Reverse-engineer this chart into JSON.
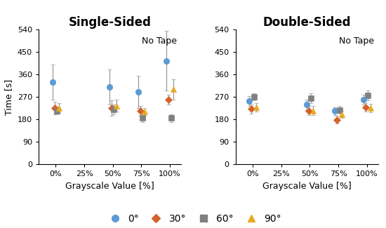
{
  "left_title": "Single-Sided",
  "right_title": "Double-Sided",
  "annotation": "No Tape",
  "xlabel": "Grayscale Value [%]",
  "ylabel": "Time [s]",
  "xtick_labels": [
    "0%",
    "25%",
    "50%",
    "75%",
    "100%"
  ],
  "xtick_pos": [
    0,
    25,
    50,
    75,
    100
  ],
  "ylim": [
    0,
    540
  ],
  "yticks": [
    0,
    90,
    180,
    270,
    360,
    450,
    540
  ],
  "colors": {
    "deg0": "#5B9BD5",
    "deg30": "#D4622A",
    "deg60": "#808080",
    "deg90": "#E8A820"
  },
  "left": {
    "x": [
      0,
      50,
      75,
      100
    ],
    "deg0": {
      "y": [
        330,
        310,
        290,
        415
      ],
      "yerr": [
        70,
        70,
        65,
        120
      ]
    },
    "deg30": {
      "y": [
        225,
        225,
        215,
        260
      ],
      "yerr": [
        25,
        30,
        20,
        20
      ]
    },
    "deg60": {
      "y": [
        215,
        220,
        185,
        185
      ],
      "yerr": [
        15,
        20,
        15,
        15
      ]
    },
    "deg90": {
      "y": [
        225,
        235,
        210,
        300
      ],
      "yerr": [
        20,
        25,
        15,
        40
      ]
    }
  },
  "right": {
    "x": [
      0,
      50,
      75,
      100
    ],
    "deg0": {
      "y": [
        253,
        238,
        213,
        258
      ],
      "yerr": [
        20,
        20,
        15,
        20
      ]
    },
    "deg30": {
      "y": [
        222,
        215,
        178,
        228
      ],
      "yerr": [
        18,
        18,
        15,
        18
      ]
    },
    "deg60": {
      "y": [
        270,
        265,
        218,
        275
      ],
      "yerr": [
        15,
        20,
        15,
        20
      ]
    },
    "deg90": {
      "y": [
        228,
        215,
        200,
        225
      ],
      "yerr": [
        18,
        18,
        15,
        18
      ]
    }
  },
  "marker_styles": {
    "deg0": {
      "marker": "o",
      "ms": 6
    },
    "deg30": {
      "marker": "D",
      "ms": 5
    },
    "deg60": {
      "marker": "s",
      "ms": 6
    },
    "deg90": {
      "marker": "^",
      "ms": 6
    }
  },
  "offsets": {
    "deg0": -3,
    "deg30": -1,
    "deg60": 1,
    "deg90": 3
  },
  "legend_labels": {
    "deg0": "0°",
    "deg30": "30°",
    "deg60": "60°",
    "deg90": "90°"
  }
}
